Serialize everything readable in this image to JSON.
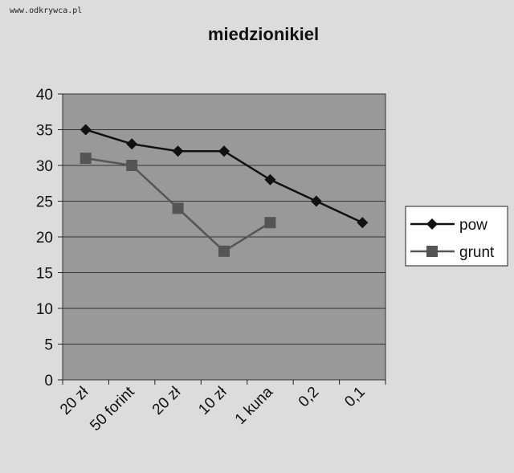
{
  "watermark": "www.odkrywca.pl",
  "chart_data": {
    "type": "line",
    "title": "miedzionikiel",
    "xlabel": "",
    "ylabel": "",
    "categories": [
      "20 zł",
      "50 forint",
      "20 zł",
      "10 zł",
      "1 kuna",
      "0,2",
      "0,1"
    ],
    "ylim": [
      0,
      40
    ],
    "yticks": [
      0,
      5,
      10,
      15,
      20,
      25,
      30,
      35,
      40
    ],
    "grid": true,
    "legend_position": "right",
    "series": [
      {
        "name": "pow",
        "marker": "diamond",
        "color": "#111111",
        "values": [
          35,
          33,
          32,
          32,
          28,
          25,
          22
        ]
      },
      {
        "name": "grunt",
        "marker": "square",
        "color": "#555555",
        "values": [
          31,
          30,
          24,
          18,
          22,
          null,
          null
        ]
      }
    ]
  }
}
